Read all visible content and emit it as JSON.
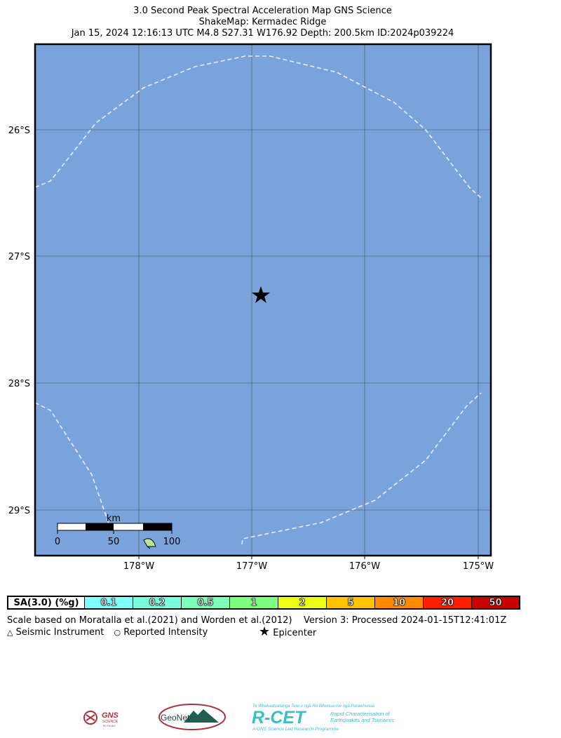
{
  "title": {
    "line1": "3.0 Second Peak Spectral Acceleration Map GNS Science",
    "line2": "ShakeMap: Kermadec Ridge",
    "line3": "Jan 15, 2024 12:16:13 UTC M4.8 S27.31 W176.92 Depth: 200.5km ID:2024p039224"
  },
  "map": {
    "ocean_color": "#7BA3DB",
    "lat_labels": [
      "26°S",
      "27°S",
      "28°S",
      "29°S"
    ],
    "lon_labels": [
      "178°W",
      "177°W",
      "176°W",
      "175°W"
    ],
    "epicenter": {
      "lat": -27.31,
      "lon": -176.92,
      "icon": "star-icon"
    },
    "scale_bar": {
      "unit": "km",
      "ticks": [
        "0",
        "50",
        "100"
      ]
    }
  },
  "legend": {
    "label": "SA(3.0) (%g)",
    "cells": [
      {
        "value": "0.1",
        "color": "#80FFFF"
      },
      {
        "value": "0.2",
        "color": "#7AFFDE"
      },
      {
        "value": "0.5",
        "color": "#7CFFBA"
      },
      {
        "value": "1",
        "color": "#7FFF7F"
      },
      {
        "value": "2",
        "color": "#EAFF14"
      },
      {
        "value": "5",
        "color": "#FFC400"
      },
      {
        "value": "10",
        "color": "#FF8C00"
      },
      {
        "value": "20",
        "color": "#FF1E00"
      },
      {
        "value": "50",
        "color": "#C80000"
      }
    ]
  },
  "footer": {
    "scale_note": "Scale based on Moratalla et al.(2021) and Worden et al.(2012)",
    "version": "Version 3: Processed 2024-01-15T12:41:01Z",
    "seismic_instrument": "Seismic Instrument",
    "reported_intensity": "Reported Intensity",
    "epicenter": "Epicenter"
  },
  "logos": {
    "gns": "GNS",
    "gns_sub": "SCIENCE",
    "gns_tagline": "TE PŪ AO",
    "geonet": "GeoNet",
    "rcet": "R-CET",
    "rcet_tagline": "Te Whakaatuatanga Tere o ngā Rū Whenua me ngā Parawhenua",
    "rcet_desc1": "Rapid Characterisation of",
    "rcet_desc2": "Earthquakes and Tsunamis",
    "rcet_footer": "A GNS Science Led Research Programme"
  }
}
